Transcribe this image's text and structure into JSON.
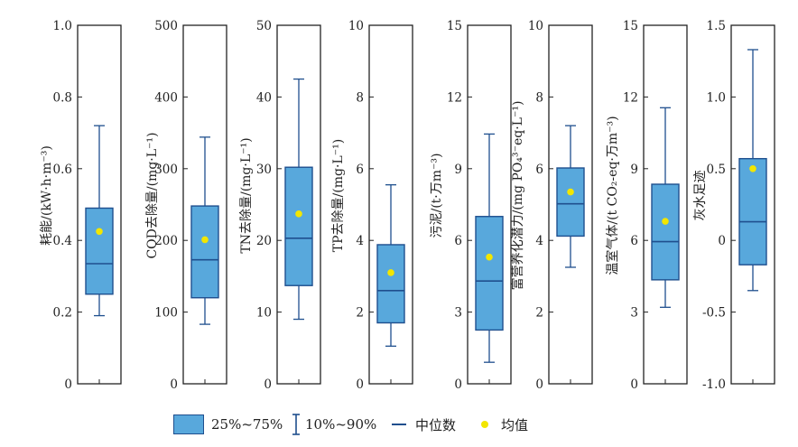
{
  "colors": {
    "box_fill": "#58a8dc",
    "box_stroke": "#1f4f8e",
    "mean_dot": "#f2e600",
    "frame": "#222222",
    "text": "#222222"
  },
  "chart_data": [
    {
      "type": "box",
      "ylabel": "耗能/(kW·h·m⁻³)",
      "ylim": [
        0,
        1.0
      ],
      "yticks": [
        "0",
        "0.2",
        "0.4",
        "0.6",
        "0.8",
        "1.0"
      ],
      "box": {
        "whisker_low": 0.19,
        "q1": 0.25,
        "median": 0.335,
        "q3": 0.49,
        "whisker_high": 0.72,
        "mean": 0.425
      }
    },
    {
      "type": "box",
      "ylabel": "COD去除量/(mg·L⁻¹)",
      "ylim": [
        0,
        500
      ],
      "yticks": [
        "0",
        "100",
        "200",
        "300",
        "400",
        "500"
      ],
      "box": {
        "whisker_low": 83,
        "q1": 120,
        "median": 173,
        "q3": 248,
        "whisker_high": 344,
        "mean": 201
      }
    },
    {
      "type": "box",
      "ylabel": "TN去除量/(mg·L⁻¹)",
      "ylim": [
        0,
        50
      ],
      "yticks": [
        "0",
        "10",
        "20",
        "30",
        "40",
        "50"
      ],
      "box": {
        "whisker_low": 9,
        "q1": 13.7,
        "median": 20.3,
        "q3": 30.2,
        "whisker_high": 42.5,
        "mean": 23.7
      }
    },
    {
      "type": "box",
      "ylabel": "TP去除量/(mg·L⁻¹)",
      "ylim": [
        0,
        10
      ],
      "yticks": [
        "0",
        "2",
        "4",
        "6",
        "8",
        "10"
      ],
      "box": {
        "whisker_low": 1.05,
        "q1": 1.7,
        "median": 2.6,
        "q3": 3.88,
        "whisker_high": 5.55,
        "mean": 3.1
      }
    },
    {
      "type": "box",
      "ylabel": "污泥/(t·万m⁻³)",
      "ylim": [
        0,
        15
      ],
      "yticks": [
        "0",
        "3",
        "6",
        "9",
        "12",
        "15"
      ],
      "box": {
        "whisker_low": 0.9,
        "q1": 2.25,
        "median": 4.3,
        "q3": 7.0,
        "whisker_high": 10.45,
        "mean": 5.3
      }
    },
    {
      "type": "box",
      "ylabel": "富营养化潜力/(mg PO₄³⁻eq·L⁻¹)",
      "ylim": [
        0,
        10
      ],
      "yticks": [
        "0",
        "2",
        "4",
        "6",
        "8",
        "10"
      ],
      "box": {
        "whisker_low": 3.25,
        "q1": 4.12,
        "median": 5.02,
        "q3": 6.02,
        "whisker_high": 7.2,
        "mean": 5.35
      }
    },
    {
      "type": "box",
      "ylabel": "温室气体/(t CO₂-eq·万m⁻³)",
      "ylim": [
        0,
        15
      ],
      "yticks": [
        "0",
        "3",
        "6",
        "9",
        "12",
        "15"
      ],
      "box": {
        "whisker_low": 3.2,
        "q1": 4.35,
        "median": 5.95,
        "q3": 8.35,
        "whisker_high": 11.55,
        "mean": 6.8
      }
    },
    {
      "type": "box",
      "ylabel": "灰水足迹",
      "ylim": [
        -1.0,
        1.5
      ],
      "yticks": [
        "-1.0",
        "-0.5",
        "0",
        "0.5",
        "1.0",
        "1.5"
      ],
      "box": {
        "whisker_low": -0.35,
        "q1": -0.17,
        "median": 0.13,
        "q3": 0.57,
        "whisker_high": 1.33,
        "mean": 0.5
      }
    }
  ],
  "legend": {
    "box_label": "25%~75%",
    "whisker_label": "10%~90%",
    "median_label": "中位数",
    "mean_label": "均值"
  }
}
